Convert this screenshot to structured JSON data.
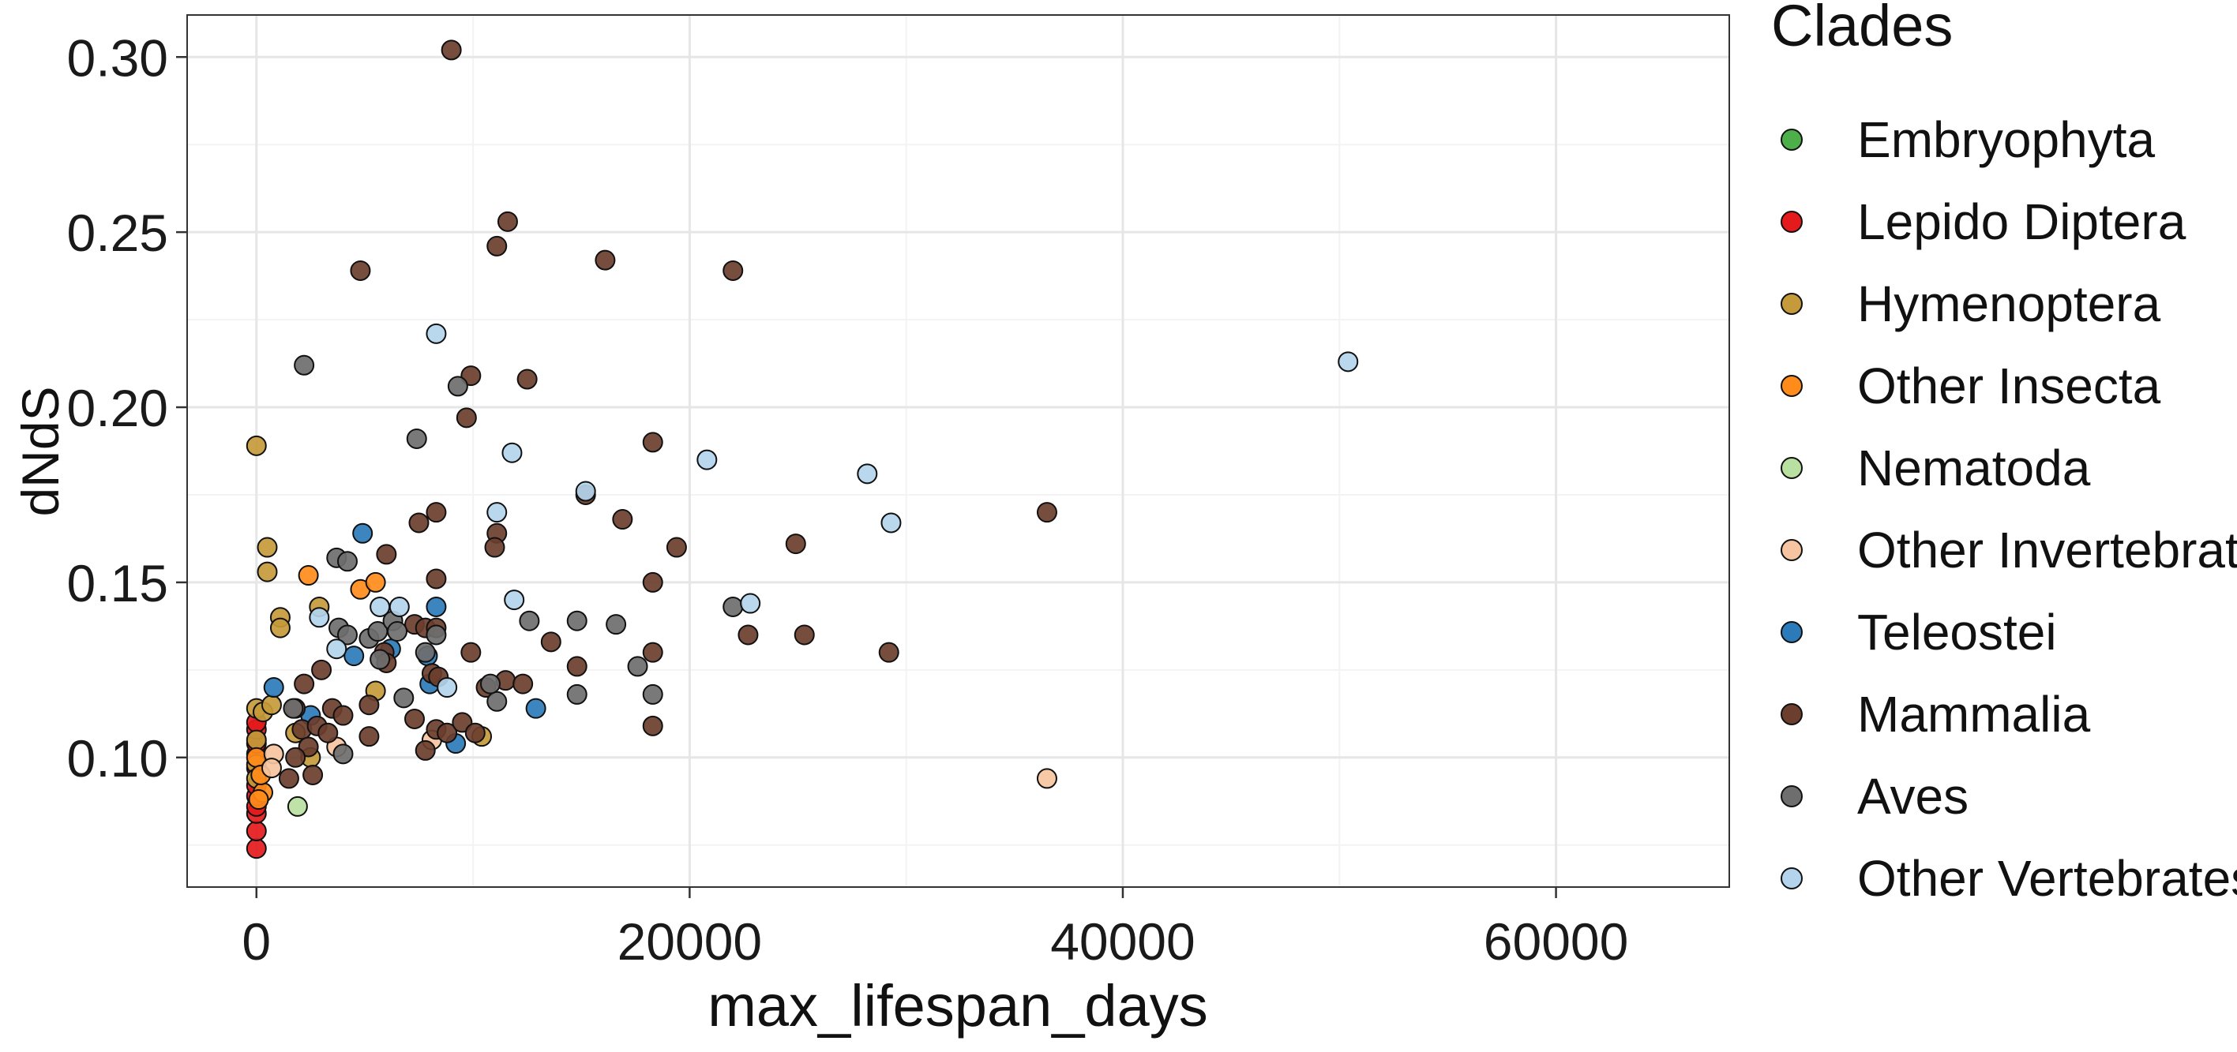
{
  "chart_data": {
    "type": "scatter",
    "xlabel": "max_lifespan_days",
    "ylabel": "dNdS",
    "xlim": [
      -3200,
      68000
    ],
    "ylim": [
      0.063,
      0.312
    ],
    "x_ticks": [
      0,
      20000,
      40000,
      60000
    ],
    "x_tick_labels": [
      "0",
      "20000",
      "40000",
      "60000"
    ],
    "y_ticks": [
      0.1,
      0.15,
      0.2,
      0.25,
      0.3
    ],
    "y_tick_labels": [
      "0.10",
      "0.15",
      "0.20",
      "0.25",
      "0.30"
    ],
    "grid": true,
    "legend_title": "Clades",
    "legend_position": "right",
    "series": [
      {
        "name": "Embryophyta",
        "color": "#4daf4a",
        "points": []
      },
      {
        "name": "Lepido Diptera",
        "color": "#e41a1c",
        "points": [
          [
            0,
            0.074
          ],
          [
            0,
            0.079
          ],
          [
            0,
            0.084
          ],
          [
            0,
            0.086
          ],
          [
            0,
            0.089
          ],
          [
            0,
            0.092
          ],
          [
            0,
            0.097
          ],
          [
            0,
            0.101
          ],
          [
            0,
            0.104
          ],
          [
            0,
            0.108
          ],
          [
            0,
            0.11
          ]
        ]
      },
      {
        "name": "Hymenoptera",
        "color": "#c49a3a",
        "points": [
          [
            0,
            0.189
          ],
          [
            500,
            0.16
          ],
          [
            500,
            0.153
          ],
          [
            1100,
            0.14
          ],
          [
            1100,
            0.137
          ],
          [
            0,
            0.114
          ],
          [
            0,
            0.105
          ],
          [
            0,
            0.098
          ],
          [
            0,
            0.094
          ],
          [
            300,
            0.113
          ],
          [
            700,
            0.115
          ],
          [
            2500,
            0.1
          ],
          [
            2900,
            0.143
          ],
          [
            5500,
            0.119
          ],
          [
            10400,
            0.106
          ],
          [
            1800,
            0.107
          ]
        ]
      },
      {
        "name": "Other Insecta",
        "color": "#ff8c1a",
        "points": [
          [
            2400,
            0.152
          ],
          [
            4800,
            0.148
          ],
          [
            5500,
            0.15
          ],
          [
            0,
            0.1
          ],
          [
            300,
            0.09
          ],
          [
            100,
            0.088
          ],
          [
            200,
            0.095
          ]
        ]
      },
      {
        "name": "Nematoda",
        "color": "#b8e0a0",
        "points": [
          [
            1900,
            0.086
          ]
        ]
      },
      {
        "name": "Other Invertebrates",
        "color": "#f6c4a0",
        "points": [
          [
            36500,
            0.094
          ],
          [
            3700,
            0.103
          ],
          [
            8100,
            0.105
          ],
          [
            800,
            0.101
          ],
          [
            700,
            0.097
          ]
        ]
      },
      {
        "name": "Teleostei",
        "color": "#2b7bba",
        "points": [
          [
            4900,
            0.164
          ],
          [
            8300,
            0.143
          ],
          [
            4500,
            0.129
          ],
          [
            6200,
            0.131
          ],
          [
            7900,
            0.129
          ],
          [
            12900,
            0.114
          ],
          [
            9200,
            0.104
          ],
          [
            2500,
            0.112
          ],
          [
            800,
            0.12
          ],
          [
            8000,
            0.121
          ]
        ]
      },
      {
        "name": "Mammalia",
        "color": "#6b3e2e",
        "points": [
          [
            9000,
            0.302
          ],
          [
            11600,
            0.253
          ],
          [
            11100,
            0.246
          ],
          [
            4800,
            0.239
          ],
          [
            16100,
            0.242
          ],
          [
            22000,
            0.239
          ],
          [
            9900,
            0.209
          ],
          [
            12500,
            0.208
          ],
          [
            9700,
            0.197
          ],
          [
            18300,
            0.19
          ],
          [
            8300,
            0.17
          ],
          [
            36500,
            0.17
          ],
          [
            7500,
            0.167
          ],
          [
            11100,
            0.164
          ],
          [
            11000,
            0.16
          ],
          [
            6000,
            0.158
          ],
          [
            15200,
            0.175
          ],
          [
            16900,
            0.168
          ],
          [
            19400,
            0.16
          ],
          [
            24900,
            0.161
          ],
          [
            8300,
            0.151
          ],
          [
            18300,
            0.15
          ],
          [
            7300,
            0.138
          ],
          [
            7800,
            0.137
          ],
          [
            8300,
            0.137
          ],
          [
            13600,
            0.133
          ],
          [
            5900,
            0.13
          ],
          [
            6000,
            0.127
          ],
          [
            8100,
            0.124
          ],
          [
            8400,
            0.123
          ],
          [
            9900,
            0.13
          ],
          [
            10600,
            0.12
          ],
          [
            11500,
            0.122
          ],
          [
            12300,
            0.121
          ],
          [
            14800,
            0.126
          ],
          [
            18300,
            0.13
          ],
          [
            22700,
            0.135
          ],
          [
            25300,
            0.135
          ],
          [
            29200,
            0.13
          ],
          [
            3000,
            0.125
          ],
          [
            2200,
            0.121
          ],
          [
            1800,
            0.114
          ],
          [
            3500,
            0.114
          ],
          [
            4000,
            0.112
          ],
          [
            2100,
            0.108
          ],
          [
            2800,
            0.109
          ],
          [
            3300,
            0.107
          ],
          [
            2400,
            0.103
          ],
          [
            2600,
            0.095
          ],
          [
            1500,
            0.094
          ],
          [
            1800,
            0.1
          ],
          [
            5200,
            0.115
          ],
          [
            5200,
            0.106
          ],
          [
            7300,
            0.111
          ],
          [
            8300,
            0.108
          ],
          [
            8800,
            0.107
          ],
          [
            7800,
            0.102
          ],
          [
            9500,
            0.11
          ],
          [
            10100,
            0.107
          ],
          [
            18300,
            0.109
          ]
        ]
      },
      {
        "name": "Aves",
        "color": "#6e6e6e",
        "points": [
          [
            2200,
            0.212
          ],
          [
            9300,
            0.206
          ],
          [
            7400,
            0.191
          ],
          [
            3700,
            0.157
          ],
          [
            4200,
            0.156
          ],
          [
            3800,
            0.137
          ],
          [
            4200,
            0.135
          ],
          [
            5200,
            0.134
          ],
          [
            5600,
            0.136
          ],
          [
            6300,
            0.139
          ],
          [
            6500,
            0.136
          ],
          [
            7800,
            0.13
          ],
          [
            8300,
            0.135
          ],
          [
            12600,
            0.139
          ],
          [
            14800,
            0.139
          ],
          [
            16600,
            0.138
          ],
          [
            22000,
            0.143
          ],
          [
            17600,
            0.126
          ],
          [
            18300,
            0.118
          ],
          [
            14800,
            0.118
          ],
          [
            11100,
            0.116
          ],
          [
            10800,
            0.121
          ],
          [
            6800,
            0.117
          ],
          [
            4000,
            0.101
          ],
          [
            1700,
            0.114
          ],
          [
            5700,
            0.128
          ]
        ]
      },
      {
        "name": "Other Vertebrates",
        "color": "#b3d4ec",
        "points": [
          [
            8300,
            0.221
          ],
          [
            50400,
            0.213
          ],
          [
            11800,
            0.187
          ],
          [
            20800,
            0.185
          ],
          [
            28200,
            0.181
          ],
          [
            15200,
            0.176
          ],
          [
            11100,
            0.17
          ],
          [
            29300,
            0.167
          ],
          [
            11900,
            0.145
          ],
          [
            22800,
            0.144
          ],
          [
            5700,
            0.143
          ],
          [
            6600,
            0.143
          ],
          [
            2900,
            0.14
          ],
          [
            3700,
            0.131
          ],
          [
            8800,
            0.12
          ]
        ]
      }
    ]
  }
}
